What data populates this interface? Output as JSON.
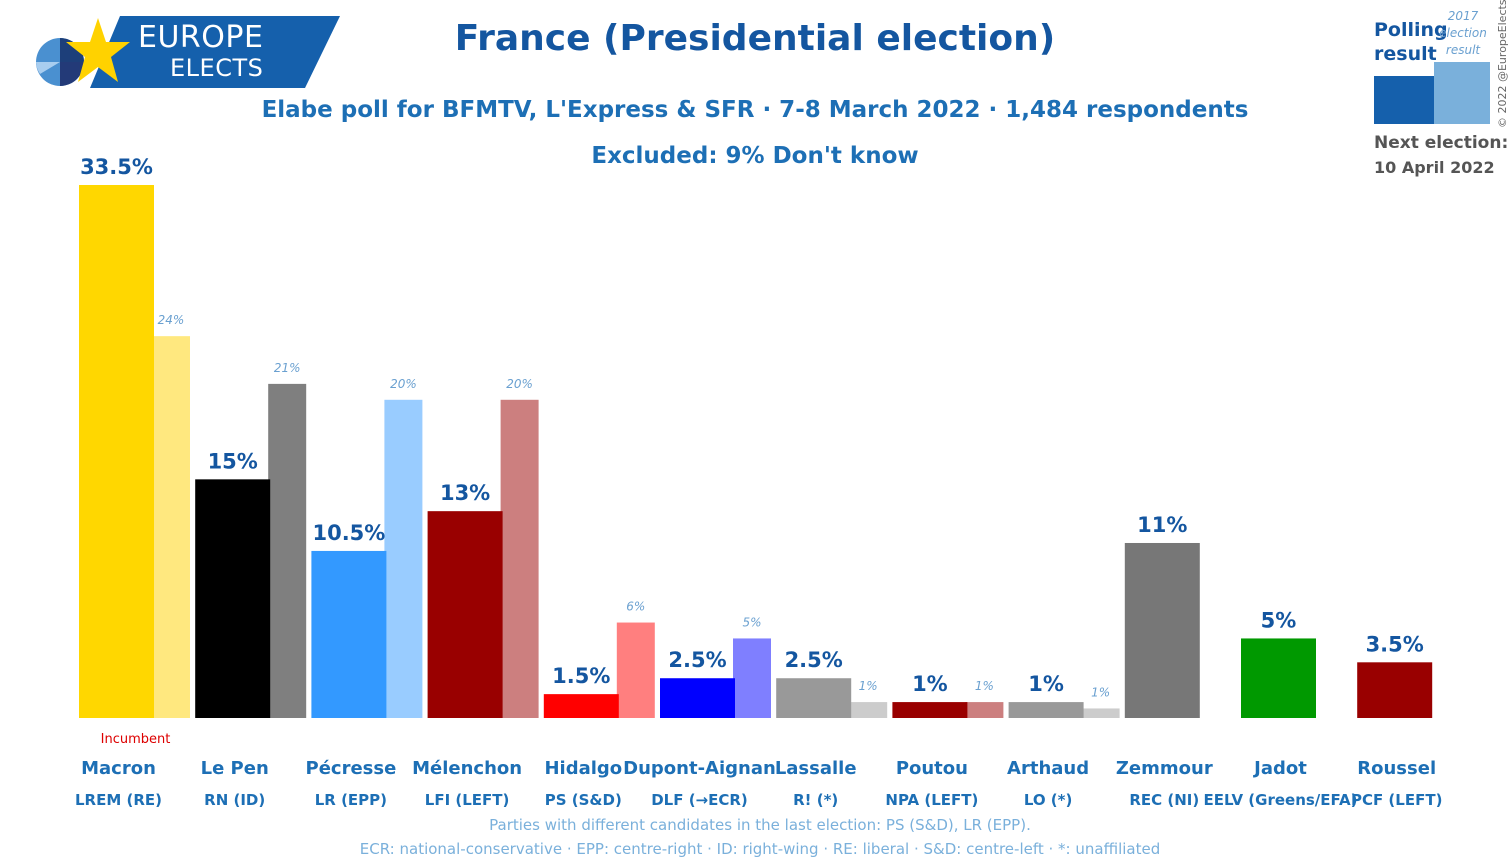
{
  "logo": {
    "line1": "EUROPE",
    "line2": "ELECTS"
  },
  "title": "France (Presidential election)",
  "subtitle": "Elabe poll for BFMTV, L'Express & SFR · 7-8 March 2022 · 1,484 respondents",
  "excluded": "Excluded: 9% Don't know",
  "legend": {
    "poll_line1": "Polling",
    "poll_line2": "result",
    "prev_line1": "2017",
    "prev_line2": "election",
    "prev_line3": "result"
  },
  "next_election": {
    "label": "Next election:",
    "date": "10 April 2022"
  },
  "copyright": "© 2022 @EuropeElects",
  "footnote1": "Parties with different candidates in the last election: PS (S&D), LR (EPP).",
  "footnote2": "ECR: national-conservative · EPP: centre-right · ID: right-wing · RE: liberal · S&D: centre-left · *: unaffiliated",
  "chart_data": {
    "type": "bar",
    "ylim": [
      0,
      33.5
    ],
    "incumbent_label": "Incumbent",
    "categories": [
      "Macron",
      "Le Pen",
      "Pécresse",
      "Mélenchon",
      "Hidalgo",
      "Dupont-Aignan",
      "Lassalle",
      "Poutou",
      "Arthaud",
      "Zemmour",
      "Jadot",
      "Roussel"
    ],
    "parties": [
      "LREM (RE)",
      "RN (ID)",
      "LR (EPP)",
      "LFI (LEFT)",
      "PS (S&D)",
      "DLF (→ECR)",
      "R! (*)",
      "NPA (LEFT)",
      "LO (*)",
      "REC (NI)",
      "EELV (Greens/EFA)",
      "PCF (LEFT)"
    ],
    "series": [
      {
        "name": "Polling result",
        "values": [
          33.5,
          15,
          10.5,
          13,
          1.5,
          2.5,
          2.5,
          1,
          1,
          11,
          5,
          3.5
        ],
        "labels": [
          "33.5%",
          "15%",
          "10.5%",
          "13%",
          "1.5%",
          "2.5%",
          "2.5%",
          "1%",
          "1%",
          "11%",
          "5%",
          "3.5%"
        ]
      },
      {
        "name": "2017 election result",
        "values": [
          24,
          21,
          20,
          20,
          6,
          5,
          1,
          1,
          0.6,
          null,
          null,
          null
        ],
        "labels": [
          "24%",
          "21%",
          "20%",
          "20%",
          "6%",
          "5%",
          "1%",
          "1%",
          "1%",
          null,
          null,
          null
        ]
      }
    ],
    "colors": [
      "#FFD700",
      "#000000",
      "#3399FF",
      "#990000",
      "#FF0000",
      "#0000FF",
      "#999999",
      "#990000",
      "#999999",
      "#777777",
      "#009900",
      "#990000"
    ],
    "prev_colors": [
      "#FFE87F",
      "#7F7F7F",
      "#99CCFF",
      "#CC7F7F",
      "#FF7F7F",
      "#7F7FFF",
      "#CCCCCC",
      "#CC7F7F",
      "#CCCCCC",
      null,
      null,
      null
    ]
  }
}
